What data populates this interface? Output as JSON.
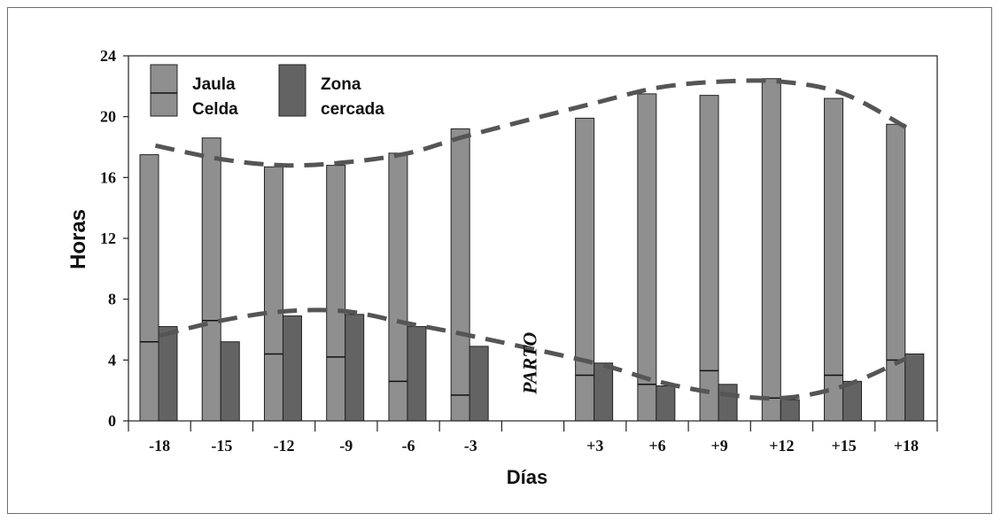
{
  "chart_data": {
    "type": "bar",
    "title": "",
    "xlabel": "Días",
    "ylabel": "Horas",
    "ylim": [
      0,
      24
    ],
    "yticks": [
      "0",
      "4",
      "8",
      "12",
      "16",
      "20",
      "24"
    ],
    "categories": [
      "-18",
      "-15",
      "-12",
      "-9",
      "-6",
      "-3",
      "",
      "+3",
      "+6",
      "+9",
      "+12",
      "+15",
      "+18"
    ],
    "series": [
      {
        "name": "Jaula",
        "values": [
          17.5,
          18.6,
          16.7,
          16.8,
          17.6,
          19.2,
          null,
          19.9,
          21.5,
          21.4,
          22.5,
          21.2,
          19.5
        ],
        "color": "#8f8f8f",
        "stacked_inner_marker": [
          5.2,
          6.6,
          4.4,
          4.2,
          2.6,
          1.7,
          null,
          3.0,
          2.4,
          3.3,
          1.5,
          3.0,
          4.0
        ]
      },
      {
        "name": "Zona cercada",
        "values": [
          6.2,
          5.2,
          6.9,
          7.0,
          6.2,
          4.9,
          null,
          3.8,
          2.3,
          2.4,
          1.4,
          2.6,
          4.4
        ],
        "color": "#636363"
      }
    ],
    "legend": {
      "placement": "top-left",
      "entries": [
        {
          "line1": "Jaula",
          "line2": "Celda",
          "color": "#8f8f8f"
        },
        {
          "line1": "Zona",
          "line2": "cercada",
          "color": "#636363"
        }
      ]
    },
    "annotations": [
      {
        "text": "PARTO",
        "category_index": 6,
        "y": 3.8
      }
    ],
    "trend_upper": [
      [
        -18.2,
        18.1
      ],
      [
        -15,
        17.2
      ],
      [
        -12,
        16.8
      ],
      [
        -9,
        17.0
      ],
      [
        -6,
        17.6
      ],
      [
        -3,
        18.8
      ],
      [
        3,
        20.9
      ],
      [
        6,
        21.9
      ],
      [
        9,
        22.3
      ],
      [
        12,
        22.3
      ],
      [
        15,
        21.5
      ],
      [
        18,
        19.3
      ]
    ],
    "trend_lower": [
      [
        -18,
        5.6
      ],
      [
        -15,
        6.6
      ],
      [
        -12,
        7.2
      ],
      [
        -9,
        7.2
      ],
      [
        -6,
        6.4
      ],
      [
        -3,
        5.6
      ],
      [
        3,
        3.8
      ],
      [
        6,
        2.6
      ],
      [
        9,
        1.8
      ],
      [
        12,
        1.5
      ],
      [
        15,
        2.3
      ],
      [
        18,
        4.1
      ]
    ],
    "grid": false
  }
}
